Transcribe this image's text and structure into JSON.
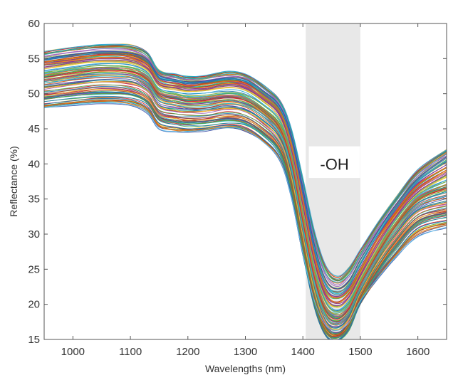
{
  "chart_data": {
    "type": "line",
    "title": "",
    "xlabel": "Wavelengths (nm)",
    "ylabel": "Reflectance (%)",
    "xlim": [
      950,
      1650
    ],
    "ylim": [
      15,
      60
    ],
    "xticks": [
      1000,
      1100,
      1200,
      1300,
      1400,
      1500,
      1600
    ],
    "yticks": [
      15,
      20,
      25,
      30,
      35,
      40,
      45,
      50,
      55,
      60
    ],
    "grid": false,
    "legend": "none",
    "highlight_band": {
      "x_start": 1405,
      "x_end": 1500,
      "label": "-OH",
      "color": "#e8e8e8"
    },
    "series_count": 120,
    "x": [
      950,
      1000,
      1050,
      1100,
      1130,
      1150,
      1180,
      1200,
      1230,
      1270,
      1300,
      1330,
      1360,
      1380,
      1400,
      1420,
      1440,
      1460,
      1480,
      1500,
      1530,
      1560,
      1600,
      1650
    ],
    "series": [
      {
        "color": "#2ca6d9",
        "values": [
          56.0,
          56.6,
          57.0,
          56.9,
          55.8,
          53.3,
          52.8,
          52.4,
          52.6,
          53.2,
          52.8,
          51.3,
          49.0,
          45.0,
          38.0,
          30.5,
          25.5,
          24.0,
          25.2,
          27.8,
          31.6,
          35.0,
          39.2,
          42.0
        ]
      },
      {
        "color": "#3b4fa8",
        "values": [
          55.0,
          55.6,
          56.0,
          55.8,
          54.8,
          52.6,
          52.0,
          51.7,
          51.8,
          52.3,
          52.0,
          50.5,
          48.2,
          44.0,
          36.5,
          28.5,
          23.5,
          22.2,
          23.4,
          26.3,
          30.4,
          34.0,
          38.0,
          41.0
        ]
      },
      {
        "color": "#e07b1f",
        "values": [
          54.5,
          55.0,
          55.5,
          55.3,
          54.2,
          52.0,
          51.4,
          51.1,
          51.3,
          51.8,
          51.4,
          49.8,
          47.5,
          43.0,
          35.0,
          27.0,
          22.0,
          20.9,
          22.1,
          25.0,
          29.4,
          33.0,
          37.0,
          39.5
        ]
      },
      {
        "color": "#8e2f8f",
        "values": [
          53.8,
          54.4,
          54.8,
          54.6,
          53.5,
          51.3,
          50.8,
          50.5,
          50.6,
          51.1,
          50.7,
          49.2,
          46.8,
          42.0,
          34.0,
          26.0,
          21.0,
          19.8,
          21.0,
          24.0,
          28.4,
          32.2,
          36.0,
          38.5
        ]
      },
      {
        "color": "#7bb33a",
        "values": [
          53.0,
          53.6,
          54.0,
          53.8,
          52.8,
          50.6,
          50.0,
          49.7,
          49.8,
          50.2,
          49.8,
          48.4,
          46.0,
          41.2,
          33.0,
          25.0,
          20.2,
          19.0,
          20.2,
          23.4,
          27.8,
          31.8,
          35.6,
          37.5
        ]
      },
      {
        "color": "#d8242e",
        "values": [
          52.3,
          52.9,
          53.3,
          53.1,
          52.0,
          49.8,
          49.2,
          48.9,
          49.0,
          49.4,
          49.0,
          47.5,
          45.0,
          40.2,
          31.8,
          23.8,
          19.0,
          17.9,
          19.3,
          22.8,
          27.2,
          31.0,
          34.8,
          36.5
        ]
      },
      {
        "color": "#27b5c9",
        "values": [
          51.5,
          52.1,
          52.5,
          52.3,
          51.2,
          49.0,
          48.4,
          48.1,
          48.2,
          48.6,
          48.2,
          46.8,
          44.2,
          39.2,
          30.8,
          22.8,
          18.2,
          17.1,
          18.6,
          22.2,
          26.6,
          30.3,
          34.0,
          35.5
        ]
      },
      {
        "color": "#f2c12e",
        "values": [
          50.8,
          51.3,
          51.7,
          51.5,
          50.4,
          48.2,
          47.6,
          47.4,
          47.5,
          47.9,
          47.5,
          46.0,
          43.4,
          38.2,
          29.8,
          21.9,
          17.4,
          16.4,
          17.9,
          21.6,
          26.0,
          29.6,
          33.2,
          34.5
        ]
      },
      {
        "color": "#a0522d",
        "values": [
          50.0,
          50.5,
          50.9,
          50.6,
          49.5,
          47.3,
          46.7,
          46.5,
          46.6,
          47.0,
          46.6,
          45.1,
          42.5,
          37.3,
          28.9,
          21.0,
          16.6,
          15.7,
          17.3,
          21.0,
          25.3,
          28.8,
          32.4,
          33.6
        ]
      },
      {
        "color": "#4cae4c",
        "values": [
          49.2,
          49.7,
          50.0,
          49.8,
          48.7,
          46.5,
          45.9,
          45.7,
          45.8,
          46.2,
          45.8,
          44.3,
          41.6,
          36.4,
          28.0,
          20.2,
          16.0,
          15.2,
          16.8,
          20.5,
          24.6,
          28.0,
          31.6,
          32.8
        ]
      },
      {
        "color": "#1f77b4",
        "values": [
          48.5,
          49.0,
          49.3,
          49.1,
          48.0,
          45.8,
          45.2,
          45.0,
          45.1,
          45.5,
          45.1,
          43.6,
          40.9,
          35.6,
          27.3,
          19.6,
          15.5,
          14.9,
          16.4,
          20.1,
          24.0,
          27.2,
          30.8,
          31.9
        ]
      },
      {
        "color": "#5db8e8",
        "values": [
          48.0,
          48.4,
          48.7,
          48.4,
          47.3,
          45.0,
          44.6,
          44.6,
          44.8,
          45.2,
          44.8,
          43.2,
          40.5,
          35.2,
          27.2,
          20.5,
          17.0,
          16.3,
          17.4,
          20.5,
          23.7,
          26.6,
          29.6,
          31.0
        ]
      }
    ]
  }
}
